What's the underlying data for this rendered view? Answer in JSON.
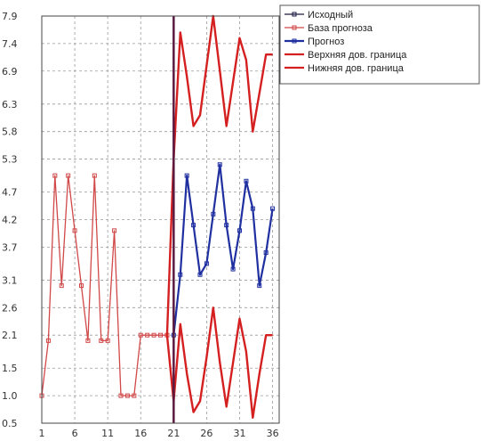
{
  "chart_data": {
    "type": "line",
    "title": "",
    "xlabel": "",
    "ylabel": "",
    "xlim": [
      1,
      37
    ],
    "ylim": [
      0.5,
      7.9
    ],
    "x_ticks": [
      1,
      6,
      11,
      16,
      21,
      26,
      31,
      36
    ],
    "x_tick_labels": [
      "1",
      "6",
      "11",
      "16",
      "21",
      "26",
      "31",
      "36"
    ],
    "y_ticks": [
      0.5,
      1.0,
      1.5,
      2.1,
      2.6,
      3.1,
      3.7,
      4.2,
      4.7,
      5.3,
      5.8,
      6.3,
      6.9,
      7.4,
      7.9
    ],
    "y_tick_labels": [
      "0.5",
      "1.0",
      "1.5",
      "2.1",
      "2.6",
      "3.1",
      "3.7",
      "4.2",
      "4.7",
      "5.3",
      "5.8",
      "6.3",
      "6.9",
      "7.4",
      "7.9"
    ],
    "grid": true,
    "legend_position": "top-right",
    "forecast_start_x": 21,
    "series": [
      {
        "name": "Исходный",
        "color": "#1a1a40",
        "marker": "square",
        "x": [],
        "y": []
      },
      {
        "name": "База прогноза",
        "color": "#d04848",
        "marker": "square",
        "x": [
          1,
          2,
          3,
          4,
          5,
          6,
          7,
          8,
          9,
          10,
          11,
          12,
          13,
          14,
          15,
          16,
          17,
          18,
          19,
          20
        ],
        "y": [
          1.0,
          2.0,
          5.0,
          3.0,
          5.0,
          4.0,
          3.0,
          2.0,
          5.0,
          2.0,
          2.0,
          4.0,
          1.0,
          1.0,
          1.0,
          2.1,
          2.1,
          2.1,
          2.1,
          2.1
        ]
      },
      {
        "name": "Прогноз",
        "color": "#2030a0",
        "marker": "square",
        "x": [
          21,
          22,
          23,
          24,
          25,
          26,
          27,
          28,
          29,
          30,
          31,
          32,
          33,
          34,
          35,
          36
        ],
        "y": [
          2.1,
          3.2,
          5.0,
          4.1,
          3.2,
          3.4,
          4.3,
          5.2,
          4.1,
          3.3,
          4.0,
          4.9,
          4.4,
          3.0,
          3.6,
          4.4
        ]
      },
      {
        "name": "Верхняя дов. граница",
        "color": "#d42020",
        "marker": "none",
        "x": [
          20,
          21,
          22,
          23,
          24,
          25,
          26,
          27,
          28,
          29,
          30,
          31,
          32,
          33,
          34,
          35,
          36
        ],
        "y": [
          2.1,
          5.3,
          7.6,
          6.8,
          5.9,
          6.1,
          7.0,
          7.9,
          6.9,
          5.9,
          6.7,
          7.5,
          7.1,
          5.8,
          6.5,
          7.2,
          7.2
        ]
      },
      {
        "name": "Нижняя дов. граница",
        "color": "#d42020",
        "marker": "none",
        "x": [
          20,
          21,
          22,
          23,
          24,
          25,
          26,
          27,
          28,
          29,
          30,
          31,
          32,
          33,
          34,
          35,
          36
        ],
        "y": [
          2.1,
          0.9,
          2.3,
          1.4,
          0.7,
          0.9,
          1.7,
          2.6,
          1.6,
          0.8,
          1.6,
          2.4,
          1.8,
          0.6,
          1.4,
          2.1,
          2.1
        ]
      }
    ]
  }
}
